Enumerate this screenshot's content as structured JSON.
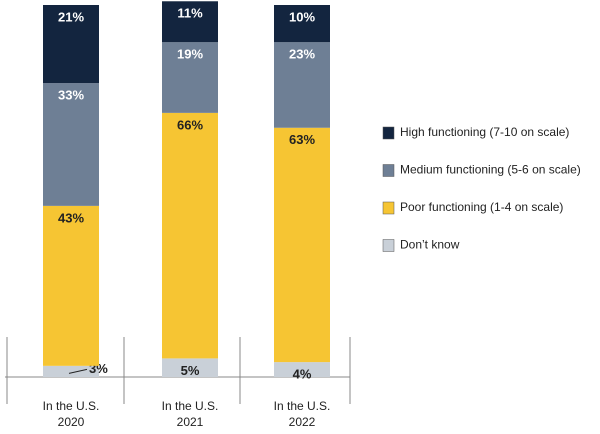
{
  "chart_data": {
    "type": "stacked_bar",
    "categories": [
      "In the U.S.\n2020",
      "In the U.S.\n2021",
      "In the U.S.\n2022"
    ],
    "ylim": [
      0,
      100
    ],
    "series": [
      {
        "name": "Don’t know",
        "color": "#c9d0d8",
        "values": [
          3,
          5,
          4
        ],
        "value_labels": [
          "3%",
          "5%",
          "4%"
        ]
      },
      {
        "name": "Poor functioning (1-4 on scale)",
        "color": "#f6c533",
        "values": [
          43,
          66,
          63
        ],
        "value_labels": [
          "43%",
          "66%",
          "63%"
        ]
      },
      {
        "name": "Medium functioning (5-6 on scale)",
        "color": "#6e7f95",
        "values": [
          33,
          19,
          23
        ],
        "value_labels": [
          "33%",
          "19%",
          "23%"
        ]
      },
      {
        "name": "High functioning (7-10 on scale)",
        "color": "#13253f",
        "values": [
          21,
          11,
          10
        ],
        "value_labels": [
          "21%",
          "11%",
          "10%"
        ]
      }
    ]
  }
}
